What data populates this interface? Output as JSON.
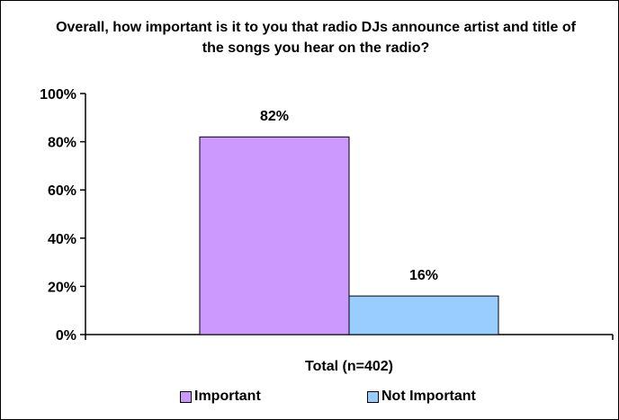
{
  "chart_data": {
    "type": "bar",
    "title": "Overall, how important is it to you that radio DJs announce artist and title of the songs you hear on the radio?",
    "categories": [
      "Total (n=402)"
    ],
    "series": [
      {
        "name": "Important",
        "values": [
          82
        ],
        "label": "82%",
        "color": "#CC99FF"
      },
      {
        "name": "Not Important",
        "values": [
          16
        ],
        "label": "16%",
        "color": "#99CCFF"
      }
    ],
    "ylim": [
      0,
      100
    ],
    "yticks": [
      0,
      20,
      40,
      60,
      80,
      100
    ],
    "ytick_labels": [
      "0%",
      "20%",
      "40%",
      "60%",
      "80%",
      "100%"
    ],
    "grid": false,
    "legend_position": "bottom"
  }
}
